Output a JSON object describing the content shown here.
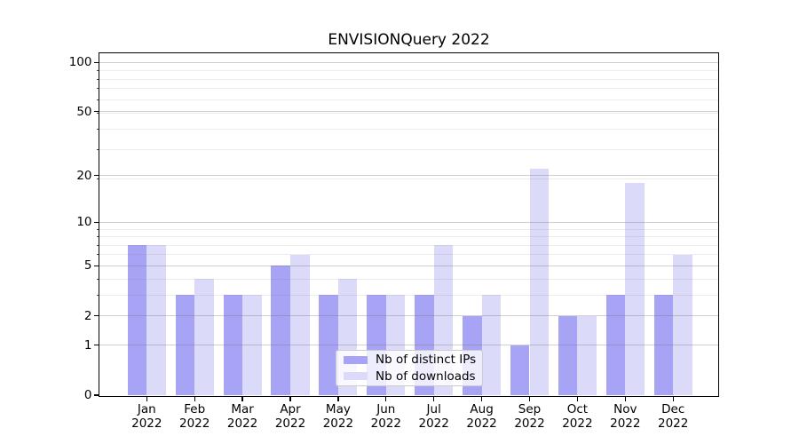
{
  "title": "ENVISIONQuery 2022",
  "chart_data": {
    "type": "bar",
    "title": "ENVISIONQuery 2022",
    "categories": [
      "Jan",
      "Feb",
      "Mar",
      "Apr",
      "May",
      "Jun",
      "Jul",
      "Aug",
      "Sep",
      "Oct",
      "Nov",
      "Dec"
    ],
    "category_year_line": "2022",
    "series": [
      {
        "name": "Nb of distinct IPs",
        "color": "#a8a4f5",
        "values": [
          7,
          3,
          3,
          5,
          3,
          3,
          3,
          2,
          1,
          2,
          3,
          3
        ]
      },
      {
        "name": "Nb of downloads",
        "color": "#dcdaf9",
        "values": [
          7,
          4,
          3,
          6,
          4,
          3,
          7,
          3,
          22,
          2,
          18,
          6
        ]
      }
    ],
    "xlabel": "",
    "ylabel": "",
    "y_axis": {
      "scale": "log1p",
      "tick_labels": [
        "0",
        "1",
        "2",
        "5",
        "10",
        "20",
        "50",
        "100"
      ],
      "tick_values": [
        0,
        1,
        2,
        5,
        10,
        20,
        50,
        100
      ],
      "minor_values": [
        3,
        4,
        6,
        7,
        8,
        9,
        19,
        29,
        39,
        49,
        59,
        69,
        79,
        89
      ],
      "ylim": [
        0,
        115
      ]
    },
    "grid": "major-and-minor-horizontal",
    "legend": {
      "position": "lower center",
      "entries": [
        "Nb of distinct IPs",
        "Nb of downloads"
      ]
    }
  }
}
